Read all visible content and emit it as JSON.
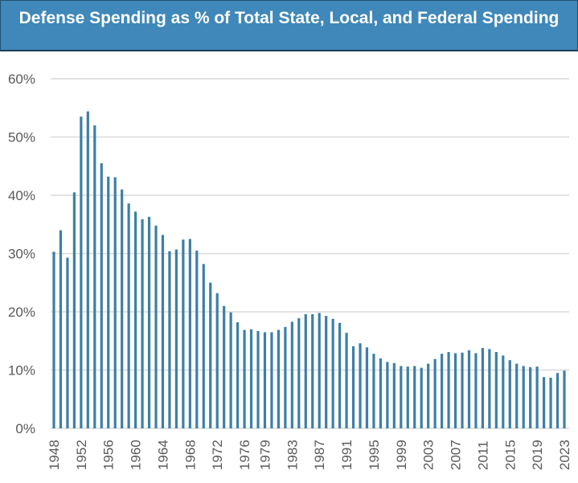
{
  "chart_data": {
    "type": "bar",
    "title": "Defense Spending as % of Total State, Local, and Federal Spending",
    "xlabel": "",
    "ylabel": "",
    "ylim": [
      0,
      60
    ],
    "yticks": [
      "0%",
      "10%",
      "20%",
      "30%",
      "40%",
      "50%",
      "60%"
    ],
    "grid": true,
    "bar_color": "#3d7fa6",
    "categories": [
      1948,
      1949,
      1950,
      1951,
      1952,
      1953,
      1954,
      1955,
      1956,
      1957,
      1958,
      1959,
      1960,
      1961,
      1962,
      1963,
      1964,
      1965,
      1966,
      1967,
      1968,
      1969,
      1970,
      1971,
      1972,
      1973,
      1974,
      1975,
      1976,
      1977,
      1978,
      1979,
      1980,
      1981,
      1982,
      1983,
      1984,
      1985,
      1986,
      1987,
      1988,
      1989,
      1990,
      1991,
      1992,
      1993,
      1994,
      1995,
      1996,
      1997,
      1998,
      1999,
      2000,
      2001,
      2002,
      2003,
      2004,
      2005,
      2006,
      2007,
      2008,
      2009,
      2010,
      2011,
      2012,
      2013,
      2014,
      2015,
      2016,
      2017,
      2018,
      2019,
      2020,
      2021,
      2022,
      2023
    ],
    "values": [
      30.3,
      34.0,
      29.3,
      40.5,
      53.5,
      54.4,
      52.0,
      45.5,
      43.2,
      43.1,
      41.0,
      38.6,
      37.2,
      35.9,
      36.3,
      34.8,
      33.2,
      30.4,
      30.7,
      32.4,
      32.5,
      30.5,
      28.2,
      25.0,
      23.2,
      21.0,
      19.9,
      18.2,
      16.9,
      17.0,
      16.7,
      16.5,
      16.5,
      16.9,
      17.4,
      18.3,
      18.9,
      19.6,
      19.6,
      19.8,
      19.3,
      18.8,
      18.1,
      16.4,
      14.1,
      14.6,
      13.9,
      12.8,
      12.0,
      11.4,
      11.2,
      10.7,
      10.6,
      10.7,
      10.4,
      11.1,
      11.9,
      12.8,
      13.1,
      12.9,
      13.0,
      13.4,
      12.9,
      13.8,
      13.6,
      13.1,
      12.5,
      11.7,
      11.1,
      10.7,
      10.5,
      10.6,
      8.8,
      8.7,
      9.5,
      9.9
    ],
    "xtick_labels": [
      "1948",
      "1952",
      "1956",
      "1960",
      "1964",
      "1968",
      "1972",
      "1976",
      "1979",
      "1983",
      "1987",
      "1991",
      "1995",
      "1999",
      "2003",
      "2007",
      "2011",
      "2015",
      "2019",
      "2023"
    ]
  }
}
